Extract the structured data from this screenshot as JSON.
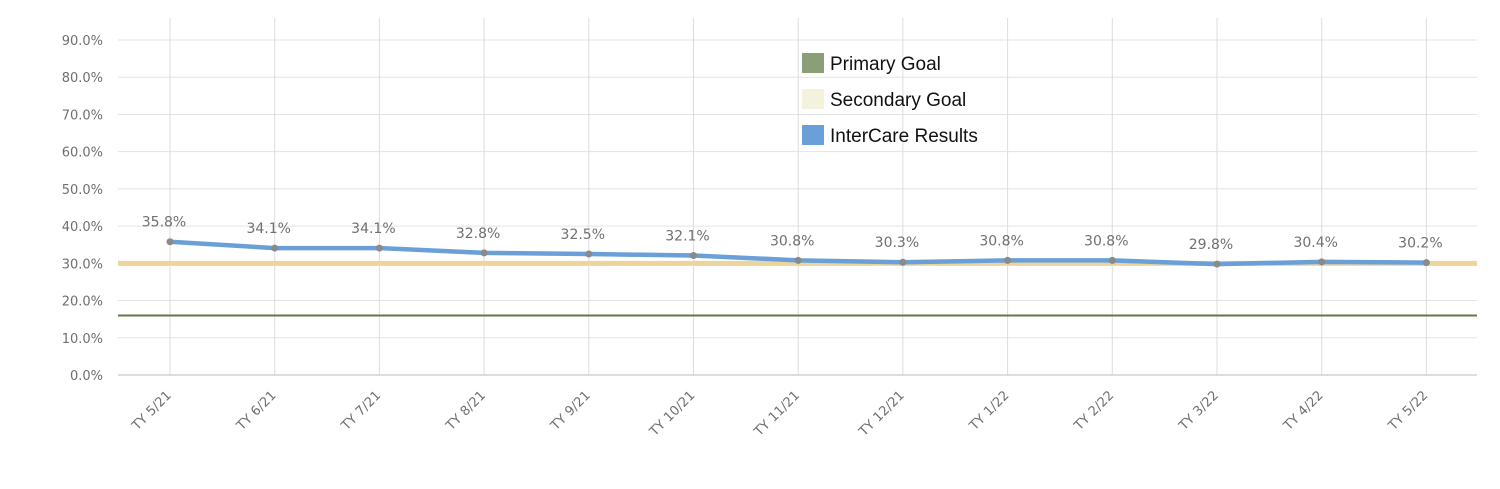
{
  "chart_data": {
    "type": "line",
    "title": "",
    "xlabel": "",
    "ylabel": "",
    "categories": [
      "TY 5/21",
      "TY 6/21",
      "TY 7/21",
      "TY 8/21",
      "TY 9/21",
      "TY 10/21",
      "TY 11/21",
      "TY 12/21",
      "TY 1/22",
      "TY 2/22",
      "TY 3/22",
      "TY 4/22",
      "TY 5/22"
    ],
    "ylim": [
      0,
      90
    ],
    "yticks": [
      0,
      10,
      20,
      30,
      40,
      50,
      60,
      70,
      80,
      90
    ],
    "ytick_labels": [
      "0.0%",
      "10.0%",
      "20.0%",
      "30.0%",
      "40.0%",
      "50.0%",
      "60.0%",
      "70.0%",
      "80.0%",
      "90.0%"
    ],
    "grid": true,
    "legend_position": "top-center",
    "series": [
      {
        "name": "InterCare Results",
        "color": "#6a9fd8",
        "values": [
          35.8,
          34.1,
          34.1,
          32.8,
          32.5,
          32.1,
          30.8,
          30.3,
          30.8,
          30.8,
          29.8,
          30.4,
          30.2
        ],
        "labels": [
          "35.8%",
          "34.1%",
          "34.1%",
          "32.8%",
          "32.5%",
          "32.1%",
          "30.8%",
          "30.3%",
          "30.8%",
          "30.8%",
          "29.8%",
          "30.4%",
          "30.2%"
        ]
      }
    ],
    "reference_lines": [
      {
        "name": "Primary Goal",
        "value": 16,
        "color": "#5f7a45",
        "legend_color": "#8a9f78"
      },
      {
        "name": "Secondary Goal",
        "value": 30,
        "color": "#ecd49a",
        "legend_color": "#f4f1dc"
      }
    ],
    "legend": [
      {
        "label": "Primary Goal",
        "color": "#8a9f78"
      },
      {
        "label": "Secondary Goal",
        "color": "#f4f1dc"
      },
      {
        "label": "InterCare Results",
        "color": "#6a9fd8"
      }
    ]
  }
}
